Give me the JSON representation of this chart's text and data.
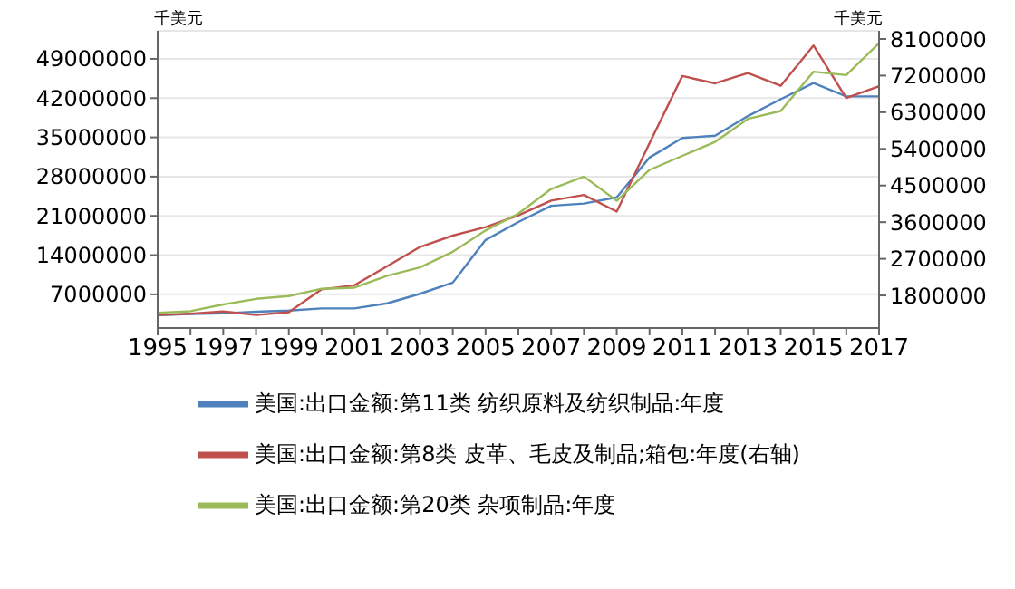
{
  "chart_data": {
    "type": "line",
    "ylabel": "千美元",
    "y2label": "千美元",
    "x": [
      1995,
      1996,
      1997,
      1998,
      1999,
      2000,
      2001,
      2002,
      2003,
      2004,
      2005,
      2006,
      2007,
      2008,
      2009,
      2010,
      2011,
      2012,
      2013,
      2014,
      2015,
      2016,
      2017
    ],
    "series": [
      {
        "name": "美国:出口金额:第11类 纺织原料及纺织制品:年度",
        "color": "#4f81bd",
        "values": [
          3300000,
          3500000,
          3600000,
          3900000,
          4100000,
          4500000,
          4500000,
          5400000,
          7100000,
          9100000,
          16700000,
          19900000,
          22800000,
          23200000,
          24300000,
          31400000,
          34900000,
          35300000,
          38800000,
          41800000,
          44700000,
          42300000,
          42300000
        ]
      },
      {
        "name": "美国:出口金额:第8类 皮革、毛皮及制品;箱包:年度(右轴)",
        "color": "#c0504d",
        "axis": "y2",
        "values": [
          1320000,
          1350000,
          1410000,
          1320000,
          1390000,
          1950000,
          2050000,
          2520000,
          2990000,
          3270000,
          3480000,
          3770000,
          4130000,
          4270000,
          3860000,
          5540000,
          7190000,
          7010000,
          7260000,
          6950000,
          7940000,
          6650000,
          6940000
        ]
      },
      {
        "name": "美国:出口金额:第20类 杂项制品:年度",
        "color": "#9bbb59",
        "values": [
          3700000,
          4000000,
          5200000,
          6200000,
          6700000,
          8000000,
          8200000,
          10300000,
          11800000,
          14600000,
          18400000,
          21400000,
          25800000,
          28000000,
          23700000,
          29200000,
          31700000,
          34200000,
          38300000,
          39700000,
          46700000,
          46100000,
          51800000
        ]
      }
    ],
    "xlim": [
      1995,
      2017
    ],
    "xticks": [
      1995,
      {
        "value": 1996,
        "label": null
      },
      1997,
      {
        "value": 1998,
        "label": null
      },
      1999,
      {
        "value": 2000,
        "label": null
      },
      2001,
      {
        "value": 2002,
        "label": null
      },
      2003,
      {
        "value": 2004,
        "label": null
      },
      2005,
      {
        "value": 2006,
        "label": null
      },
      2007,
      {
        "value": 2008,
        "label": null
      },
      2009,
      {
        "value": 2010,
        "label": null
      },
      2011,
      {
        "value": 2012,
        "label": null
      },
      2013,
      {
        "value": 2014,
        "label": null
      },
      2015,
      {
        "value": 2016,
        "label": null
      },
      2017
    ],
    "ylim": [
      1000000,
      54000000
    ],
    "yticks": [
      7000000,
      14000000,
      21000000,
      28000000,
      35000000,
      42000000,
      49000000
    ],
    "y2lim": [
      1000000,
      8300000
    ],
    "y2ticks": [
      1800000,
      2700000,
      3600000,
      4500000,
      5400000,
      6300000,
      7200000,
      8100000
    ],
    "grid": "y",
    "legend": "bottom",
    "marker": "none",
    "line_style": "solid"
  }
}
